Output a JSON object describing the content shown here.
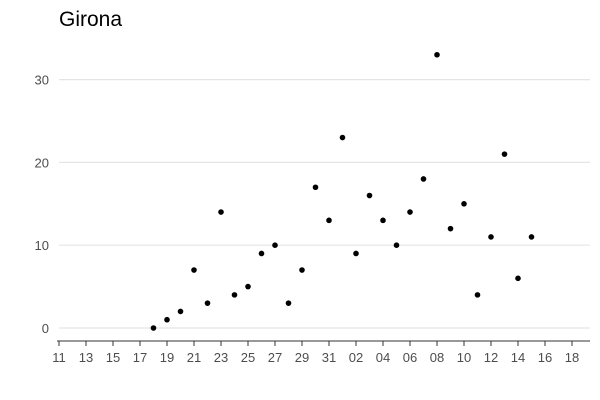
{
  "chart_data": {
    "type": "scatter",
    "title": "Girona",
    "xlabel": "",
    "ylabel": "",
    "grid": "horizontal",
    "legend": "none",
    "ylim": [
      -1.3,
      35
    ],
    "yticks": [
      0,
      10,
      20,
      30
    ],
    "xlim": [
      0,
      39.5
    ],
    "xticks": [
      {
        "pos": 0,
        "label": "11"
      },
      {
        "pos": 2,
        "label": "13"
      },
      {
        "pos": 4,
        "label": "15"
      },
      {
        "pos": 6,
        "label": "17"
      },
      {
        "pos": 8,
        "label": "19"
      },
      {
        "pos": 10,
        "label": "21"
      },
      {
        "pos": 12,
        "label": "23"
      },
      {
        "pos": 14,
        "label": "25"
      },
      {
        "pos": 16,
        "label": "27"
      },
      {
        "pos": 18,
        "label": "29"
      },
      {
        "pos": 20,
        "label": "31"
      },
      {
        "pos": 22,
        "label": "02"
      },
      {
        "pos": 24,
        "label": "04"
      },
      {
        "pos": 26,
        "label": "06"
      },
      {
        "pos": 28,
        "label": "08"
      },
      {
        "pos": 30,
        "label": "10"
      },
      {
        "pos": 32,
        "label": "12"
      },
      {
        "pos": 34,
        "label": "14"
      },
      {
        "pos": 36,
        "label": "16"
      },
      {
        "pos": 38,
        "label": "18"
      }
    ],
    "points": [
      {
        "x": 7,
        "y": 0
      },
      {
        "x": 8,
        "y": 1
      },
      {
        "x": 9,
        "y": 2
      },
      {
        "x": 10,
        "y": 7
      },
      {
        "x": 11,
        "y": 3
      },
      {
        "x": 12,
        "y": 14
      },
      {
        "x": 13,
        "y": 4
      },
      {
        "x": 14,
        "y": 5
      },
      {
        "x": 15,
        "y": 9
      },
      {
        "x": 16,
        "y": 10
      },
      {
        "x": 17,
        "y": 3
      },
      {
        "x": 18,
        "y": 7
      },
      {
        "x": 19,
        "y": 17
      },
      {
        "x": 20,
        "y": 13
      },
      {
        "x": 21,
        "y": 23
      },
      {
        "x": 22,
        "y": 9
      },
      {
        "x": 23,
        "y": 16
      },
      {
        "x": 24,
        "y": 13
      },
      {
        "x": 25,
        "y": 10
      },
      {
        "x": 26,
        "y": 14
      },
      {
        "x": 27,
        "y": 18
      },
      {
        "x": 28,
        "y": 33
      },
      {
        "x": 29,
        "y": 12
      },
      {
        "x": 30,
        "y": 15
      },
      {
        "x": 31,
        "y": 4
      },
      {
        "x": 32,
        "y": 11
      },
      {
        "x": 33,
        "y": 21
      },
      {
        "x": 34,
        "y": 6
      },
      {
        "x": 35,
        "y": 11
      }
    ]
  }
}
